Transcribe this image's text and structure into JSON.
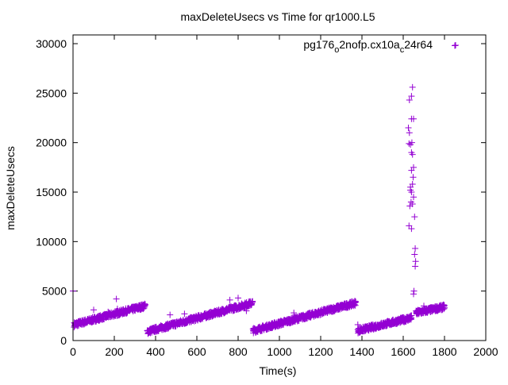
{
  "chart_data": {
    "type": "scatter",
    "title": "maxDeleteUsecs vs Time for qr1000.L5",
    "xlabel": "Time(s)",
    "ylabel": "maxDeleteUsecs",
    "xlim": [
      0,
      2000
    ],
    "ylim": [
      0,
      30000
    ],
    "xticks": [
      0,
      200,
      400,
      600,
      800,
      1000,
      1200,
      1400,
      1600,
      1800,
      2000
    ],
    "yticks": [
      0,
      5000,
      10000,
      15000,
      20000,
      25000,
      30000
    ],
    "grid": false,
    "legend": {
      "label": "pg176_o2nofp.cx10a_c24r64",
      "position": "top-right"
    },
    "series_color": "#9400d3",
    "trend_segments": [
      {
        "t_start": 5,
        "t_end": 350,
        "y_start": 1600,
        "y_end": 3500,
        "n": 340
      },
      {
        "t_start": 360,
        "t_end": 870,
        "y_start": 900,
        "y_end": 3800,
        "n": 500
      },
      {
        "t_start": 872,
        "t_end": 1370,
        "y_start": 1000,
        "y_end": 3800,
        "n": 490
      },
      {
        "t_start": 1380,
        "t_end": 1640,
        "y_start": 1000,
        "y_end": 2300,
        "n": 260
      },
      {
        "t_start": 1662,
        "t_end": 1800,
        "y_start": 2800,
        "y_end": 3400,
        "n": 140
      }
    ],
    "outliers": [
      [
        0,
        5000
      ],
      [
        100,
        3100
      ],
      [
        210,
        4200
      ],
      [
        215,
        3200
      ],
      [
        170,
        2900
      ],
      [
        540,
        2700
      ],
      [
        470,
        2600
      ],
      [
        800,
        4300
      ],
      [
        760,
        4100
      ],
      [
        840,
        3000
      ],
      [
        880,
        1000
      ],
      [
        1070,
        2800
      ],
      [
        1380,
        1600
      ],
      [
        1700,
        3500
      ],
      [
        1850,
        29800
      ],
      [
        1630,
        24300
      ],
      [
        1640,
        24700
      ],
      [
        1645,
        25600
      ],
      [
        1640,
        22400
      ],
      [
        1650,
        22400
      ],
      [
        1625,
        21500
      ],
      [
        1630,
        21000
      ],
      [
        1628,
        19900
      ],
      [
        1635,
        19800
      ],
      [
        1642,
        20000
      ],
      [
        1640,
        19000
      ],
      [
        1645,
        18800
      ],
      [
        1650,
        17500
      ],
      [
        1640,
        17200
      ],
      [
        1648,
        16500
      ],
      [
        1645,
        15800
      ],
      [
        1635,
        15500
      ],
      [
        1640,
        15000
      ],
      [
        1650,
        14500
      ],
      [
        1638,
        14000
      ],
      [
        1632,
        13600
      ],
      [
        1645,
        13800
      ],
      [
        1655,
        12500
      ],
      [
        1628,
        11600
      ],
      [
        1640,
        11300
      ],
      [
        1658,
        9300
      ],
      [
        1655,
        8700
      ],
      [
        1660,
        8000
      ],
      [
        1658,
        7500
      ],
      [
        1652,
        5000
      ],
      [
        1650,
        4700
      ],
      [
        1635,
        15200
      ]
    ]
  }
}
